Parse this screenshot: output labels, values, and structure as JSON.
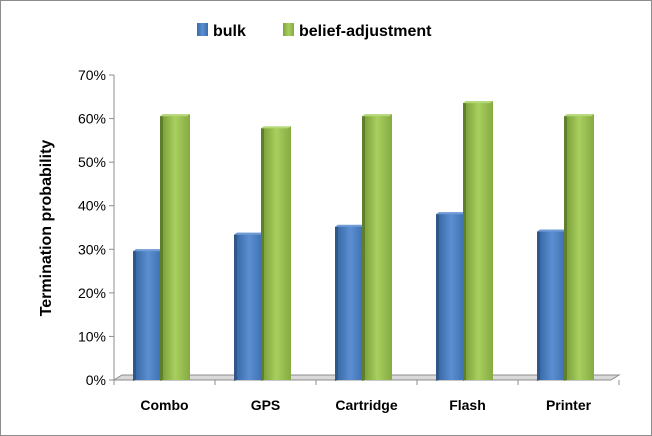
{
  "chart_data": {
    "type": "bar",
    "categories": [
      "Combo",
      "GPS",
      "Cartridge",
      "Flash",
      "Printer"
    ],
    "series": [
      {
        "name": "bulk",
        "values": [
          30,
          33.8,
          35.6,
          38.5,
          34.5
        ],
        "color": "#4f81bd"
      },
      {
        "name": "belief-adjustment",
        "values": [
          61,
          58.2,
          61,
          64,
          61
        ],
        "color": "#9bbb59"
      }
    ],
    "ylabel": "Termination probability",
    "xlabel": "",
    "ylim": [
      0,
      70
    ],
    "yticks": [
      "0%",
      "10%",
      "20%",
      "30%",
      "40%",
      "50%",
      "60%",
      "70%"
    ],
    "legend_position": "top",
    "grid": false,
    "style": "3d-clustered-column"
  }
}
